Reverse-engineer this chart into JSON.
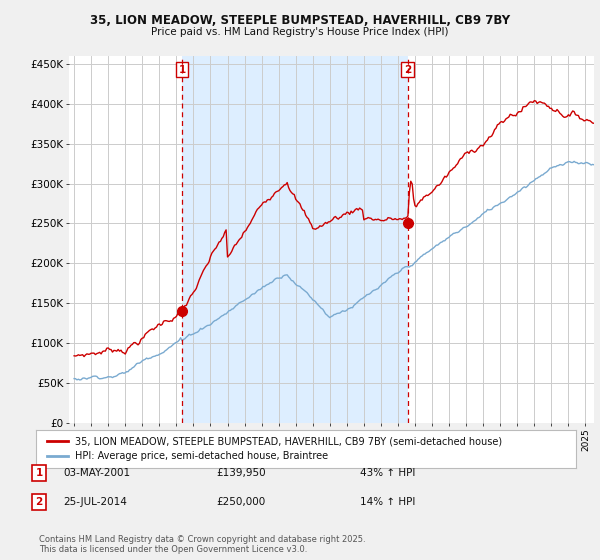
{
  "title1": "35, LION MEADOW, STEEPLE BUMPSTEAD, HAVERHILL, CB9 7BY",
  "title2": "Price paid vs. HM Land Registry's House Price Index (HPI)",
  "ylabel_ticks": [
    "£0",
    "£50K",
    "£100K",
    "£150K",
    "£200K",
    "£250K",
    "£300K",
    "£350K",
    "£400K",
    "£450K"
  ],
  "ytick_vals": [
    0,
    50000,
    100000,
    150000,
    200000,
    250000,
    300000,
    350000,
    400000,
    450000
  ],
  "ylim": [
    0,
    460000
  ],
  "xlim_start": 1994.7,
  "xlim_end": 2025.5,
  "red_color": "#cc0000",
  "blue_color": "#7aaad0",
  "shade_color": "#ddeeff",
  "transaction1_x": 2001.34,
  "transaction2_x": 2014.56,
  "transaction1_price": 139950,
  "transaction2_price": 250000,
  "transaction1_date": "03-MAY-2001",
  "transaction2_date": "25-JUL-2014",
  "transaction1_label": "43% ↑ HPI",
  "transaction2_label": "14% ↑ HPI",
  "legend_line1": "35, LION MEADOW, STEEPLE BUMPSTEAD, HAVERHILL, CB9 7BY (semi-detached house)",
  "legend_line2": "HPI: Average price, semi-detached house, Braintree",
  "footer1": "Contains HM Land Registry data © Crown copyright and database right 2025.",
  "footer2": "This data is licensed under the Open Government Licence v3.0.",
  "bg_color": "#f0f0f0",
  "plot_bg_color": "#ffffff",
  "grid_color": "#cccccc"
}
